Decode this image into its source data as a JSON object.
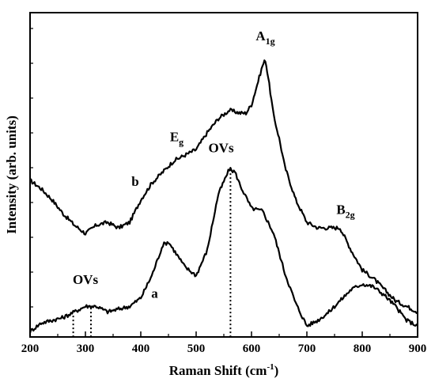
{
  "chart_data": {
    "type": "line",
    "xlabel": "Raman Shift (cm",
    "xlabel_sup": "-1",
    "xlabel_tail": ")",
    "ylabel": "Intensity (arb. units)",
    "xlim": [
      200,
      900
    ],
    "xticks": [
      200,
      300,
      400,
      500,
      600,
      700,
      800,
      900
    ],
    "ylim": [
      0,
      100
    ],
    "y_tick_labels": false,
    "grid": false,
    "series": [
      {
        "name": "b",
        "x": [
          200,
          220,
          240,
          260,
          280,
          300,
          320,
          340,
          360,
          380,
          400,
          420,
          440,
          460,
          480,
          500,
          520,
          540,
          560,
          580,
          590,
          600,
          610,
          620,
          625,
          630,
          640,
          650,
          660,
          680,
          700,
          720,
          740,
          760,
          780,
          800,
          820,
          840,
          860,
          880,
          900
        ],
        "y": [
          52,
          49,
          45,
          40,
          36,
          33,
          36,
          37,
          35,
          37,
          45,
          51,
          55,
          59,
          61,
          63,
          69,
          74,
          77,
          76,
          76,
          79,
          86,
          93,
          95,
          89,
          75,
          67,
          57,
          45,
          37,
          35,
          35,
          35,
          27,
          20,
          17,
          13,
          9,
          7,
          5
        ]
      },
      {
        "name": "a",
        "x": [
          200,
          220,
          240,
          260,
          280,
          300,
          320,
          340,
          360,
          380,
          400,
          420,
          440,
          450,
          460,
          480,
          500,
          520,
          540,
          560,
          570,
          580,
          600,
          620,
          640,
          660,
          680,
          700,
          720,
          740,
          760,
          780,
          800,
          820,
          840,
          860,
          880,
          900
        ],
        "y": [
          -2,
          1,
          2,
          3,
          5,
          7,
          7,
          5,
          6,
          7,
          10,
          18,
          29,
          30,
          27,
          21,
          18,
          27,
          47,
          56,
          55,
          50,
          42,
          41,
          33,
          19,
          8,
          0,
          2,
          5,
          9,
          13,
          15,
          14,
          11,
          7,
          2,
          0
        ]
      }
    ],
    "annotations": [
      {
        "text": "b",
        "x": 390,
        "y": 50
      },
      {
        "text": "a",
        "x": 425,
        "y": 10
      },
      {
        "text": "E",
        "sub": "g",
        "x": 465,
        "y": 66
      },
      {
        "text": "A",
        "sub": "1g",
        "x": 625,
        "y": 102
      },
      {
        "text": "B",
        "sub": "2g",
        "x": 770,
        "y": 40
      },
      {
        "text": "OVs",
        "x": 545,
        "y": 62
      },
      {
        "text": "OVs",
        "x": 300,
        "y": 15
      }
    ],
    "dotted_markers": [
      {
        "x": 278,
        "from_y": -4,
        "to_y": 4
      },
      {
        "x": 310,
        "from_y": -4,
        "to_y": 7
      },
      {
        "x": 562,
        "from_y": -4,
        "to_y": 56
      }
    ]
  }
}
